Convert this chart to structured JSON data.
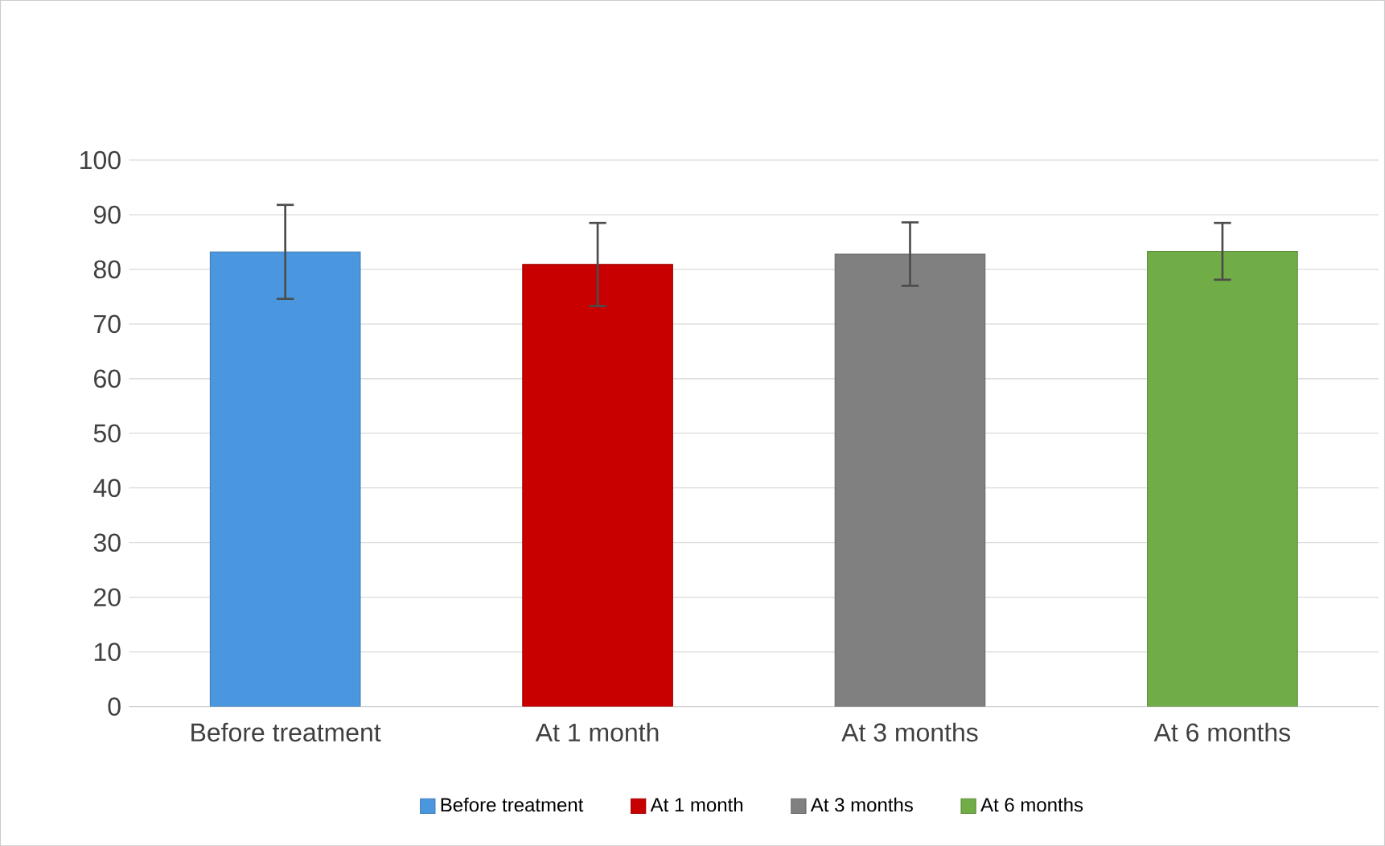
{
  "chart_data": {
    "type": "bar",
    "categories": [
      "Before treatment",
      "At 1 month",
      "At 3 months",
      "At 6 months"
    ],
    "series": [
      {
        "name": "Before treatment",
        "color": "#4a97e0",
        "values": [
          83.2,
          null,
          null,
          null
        ],
        "errors": [
          8.6,
          null,
          null,
          null
        ]
      },
      {
        "name": "At 1 month",
        "color": "#c80000",
        "values": [
          null,
          80.9,
          null,
          null
        ],
        "errors": [
          null,
          7.6,
          null,
          null
        ]
      },
      {
        "name": "At 3 months",
        "color": "#808080",
        "values": [
          null,
          null,
          82.8,
          null
        ],
        "errors": [
          null,
          null,
          5.8,
          null
        ]
      },
      {
        "name": "At 6 months",
        "color": "#70ad47",
        "values": [
          null,
          null,
          null,
          83.3
        ],
        "errors": [
          null,
          null,
          null,
          5.2
        ]
      }
    ],
    "ylim": [
      0,
      100
    ],
    "yticks": [
      0,
      10,
      20,
      30,
      40,
      50,
      60,
      70,
      80,
      90,
      100
    ],
    "grid": "y",
    "legend": "bottom"
  }
}
